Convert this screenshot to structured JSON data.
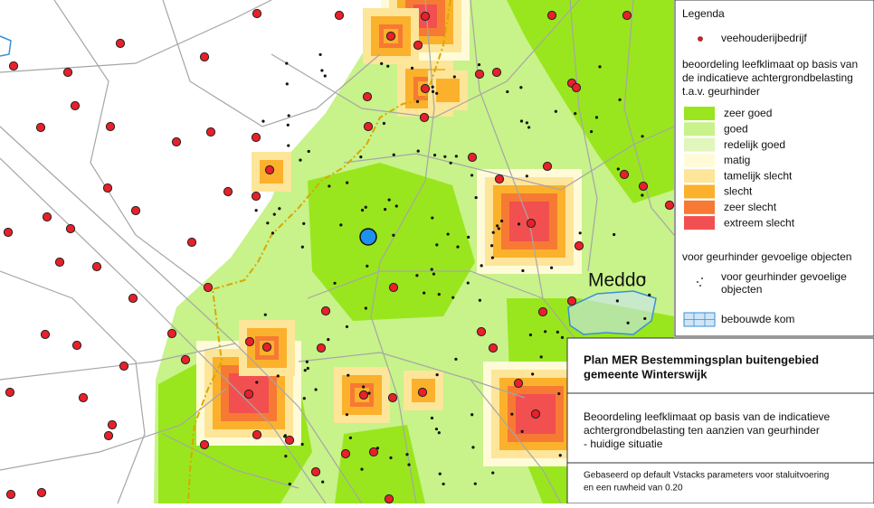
{
  "map": {
    "place_label": "Meddo"
  },
  "legend": {
    "title": "Legenda",
    "farm_label": "veehouderijbedrijf",
    "assessment_heading": [
      "beoordeling leefklimaat op basis van",
      "de indicatieve achtergrondbelasting",
      "t.a.v. geurhinder"
    ],
    "classes": [
      {
        "label": "zeer goed",
        "color": "#99e61e"
      },
      {
        "label": "goed",
        "color": "#c8f28a"
      },
      {
        "label": "redelijk goed",
        "color": "#e0f6bd"
      },
      {
        "label": "matig",
        "color": "#fffbd8"
      },
      {
        "label": "tamelijk slecht",
        "color": "#fde59a"
      },
      {
        "label": "slecht",
        "color": "#fbb12c"
      },
      {
        "label": "zeer slecht",
        "color": "#f67a33"
      },
      {
        "label": "extreem slecht",
        "color": "#f24f50"
      }
    ],
    "sensitive_heading": "voor geurhinder gevoelige objecten",
    "sensitive_label": [
      "voor geurhinder gevoelige",
      "objecten"
    ],
    "built_area_label": "bebouwde kom"
  },
  "title_box": {
    "title": [
      "Plan MER Bestemmingsplan buitengebied",
      "gemeente Winterswijk"
    ],
    "description": [
      "Beoordeling leefklimaat op basis van de indicatieve",
      "achtergrondbelasting ten aanzien van geurhinder",
      "- huidige situatie"
    ],
    "note": [
      "Gebaseerd op default Vstacks parameters voor staluitvoering",
      "en een ruwheid van 0.20"
    ]
  }
}
